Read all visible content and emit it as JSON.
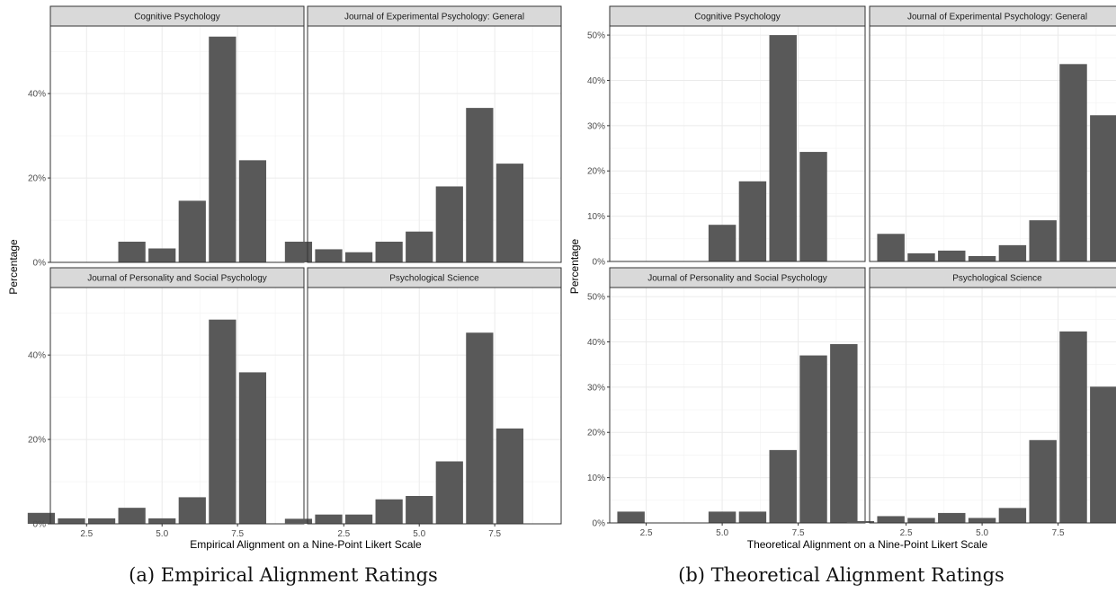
{
  "chart_data": [
    {
      "type": "bar",
      "caption": "(a) Empirical Alignment Ratings",
      "xlabel": "Empirical Alignment on a Nine-Point Likert Scale",
      "ylabel": "Percentage",
      "x": [
        1,
        2,
        3,
        4,
        5,
        6,
        7,
        8,
        9
      ],
      "xticks": [
        "2.5",
        "5.0",
        "7.5"
      ],
      "yticks": [
        "0%",
        "20%",
        "40%"
      ],
      "ylim": [
        0,
        0.56
      ],
      "bar_color": "#595959",
      "panels": [
        {
          "name": "Cognitive Psychology",
          "values": [
            0,
            0,
            0,
            0.049,
            0.033,
            0.146,
            0.535,
            0.242,
            0
          ]
        },
        {
          "name": "Journal of Experimental Psychology: General",
          "values": [
            0.049,
            0.031,
            0.024,
            0.049,
            0.073,
            0.18,
            0.366,
            0.234,
            0
          ]
        },
        {
          "name": "Journal of Personality and Social Psychology",
          "values": [
            0.026,
            0.013,
            0.013,
            0.038,
            0.013,
            0.063,
            0.484,
            0.359,
            0
          ]
        },
        {
          "name": "Psychological Science",
          "values": [
            0.012,
            0.022,
            0.022,
            0.058,
            0.066,
            0.148,
            0.453,
            0.226,
            0
          ]
        }
      ]
    },
    {
      "type": "bar",
      "caption": "(b) Theoretical Alignment Ratings",
      "xlabel": "Theoretical Alignment on a Nine-Point Likert Scale",
      "ylabel": "Percentage",
      "x": [
        1,
        2,
        3,
        4,
        5,
        6,
        7,
        8,
        9
      ],
      "xticks": [
        "2.5",
        "5.0",
        "7.5"
      ],
      "yticks": [
        "0%",
        "10%",
        "20%",
        "30%",
        "40%",
        "50%"
      ],
      "ylim": [
        0,
        0.52
      ],
      "bar_color": "#595959",
      "panels": [
        {
          "name": "Cognitive Psychology",
          "values": [
            0,
            0,
            0,
            0,
            0.081,
            0.177,
            0.5,
            0.242,
            0
          ]
        },
        {
          "name": "Journal of Experimental Psychology: General",
          "values": [
            0,
            0.061,
            0.018,
            0.024,
            0.012,
            0.036,
            0.091,
            0.436,
            0.323
          ]
        },
        {
          "name": "Journal of Personality and Social Psychology",
          "values": [
            0,
            0.025,
            0,
            0,
            0.025,
            0.025,
            0.161,
            0.37,
            0.395
          ]
        },
        {
          "name": "Psychological Science",
          "values": [
            0.004,
            0.015,
            0.011,
            0.022,
            0.011,
            0.033,
            0.183,
            0.423,
            0.301
          ]
        }
      ]
    }
  ]
}
